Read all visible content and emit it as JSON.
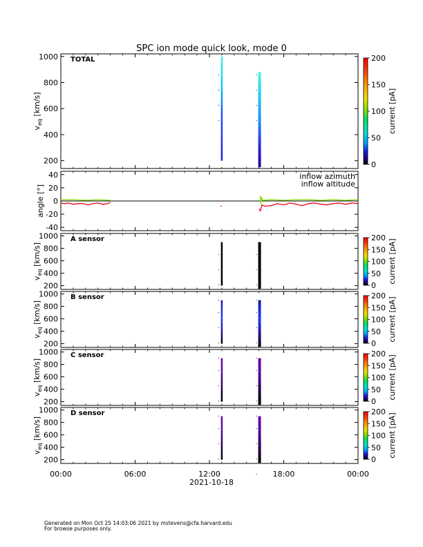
{
  "figure": {
    "title": "SPC ion mode quick look, mode 0",
    "footer_line1": "Generated on Mon Oct 25 14:03:06 2021 by mstevens@cfa.harvard.edu",
    "footer_line2": "For browse purposes only.",
    "date_label": "2021-10-18"
  },
  "colors": {
    "azimuth": "#e8001c",
    "altitude": "#7fe000",
    "axis": "#000000"
  },
  "chart_data": [
    {
      "type": "heatmap",
      "panel": "TOTAL",
      "label": "TOTAL",
      "ylabel_main": "v",
      "ylabel_sub": "eq",
      "ylabel_unit": "[km/s]",
      "ylim": [
        140,
        1020
      ],
      "yticks": [
        200,
        400,
        600,
        800,
        1000
      ],
      "colorbar": {
        "label": "current [pA]",
        "range": [
          0,
          200
        ],
        "ticks": [
          0,
          50,
          100,
          150,
          200
        ]
      },
      "events": [
        {
          "t": 13.0,
          "vmin": 200,
          "vmax": 1000,
          "style": "total1"
        },
        {
          "t": 16.05,
          "vmin": 150,
          "vmax": 880,
          "style": "total2"
        }
      ]
    },
    {
      "type": "line",
      "panel": "angle",
      "ylabel": "angle [°]",
      "ylim": [
        -45,
        45
      ],
      "yticks": [
        -40,
        -20,
        0,
        20,
        40
      ],
      "legend": [
        "inflow azimuth",
        "inflow altitude"
      ],
      "series": [
        {
          "name": "inflow azimuth",
          "x": [
            0,
            0.3,
            0.6,
            1,
            1.4,
            1.8,
            2.2,
            2.6,
            3,
            3.4,
            3.8,
            4.0,
            12.9,
            12.9,
            13.0,
            13.0,
            16.0,
            16.1,
            16.25,
            16.5,
            17,
            17.5,
            18,
            18.5,
            19,
            19.5,
            20,
            20.5,
            21,
            21.5,
            22,
            22.5,
            23,
            23.5,
            24
          ],
          "y": [
            -3,
            -4,
            -3,
            -5,
            -4,
            -4,
            -6,
            -4,
            -3,
            -5,
            -4,
            -2,
            null,
            -8,
            -8,
            null,
            -12,
            -15,
            -6,
            -8,
            -7,
            -4,
            -6,
            -3,
            -5,
            -7,
            -4,
            -3,
            -5,
            -6,
            -4,
            -3,
            -5,
            -3,
            -4
          ]
        },
        {
          "name": "inflow altitude",
          "x": [
            0,
            1,
            2,
            3,
            4,
            12.9,
            13.0,
            16.0,
            16.1,
            16.15,
            16.2,
            16.3,
            17,
            18,
            19,
            20,
            21,
            22,
            23,
            24
          ],
          "y": [
            2,
            2,
            1,
            2,
            1,
            null,
            2,
            null,
            8,
            -5,
            6,
            1,
            2,
            1,
            2,
            2,
            1,
            2,
            1,
            2
          ]
        }
      ]
    },
    {
      "type": "heatmap",
      "panel": "A",
      "label": "A sensor",
      "ylabel_main": "v",
      "ylabel_sub": "eq",
      "ylabel_unit": "[km/s]",
      "ylim": [
        140,
        1040
      ],
      "yticks": [
        200,
        400,
        600,
        800,
        1000
      ],
      "colorbar": {
        "label": "current [pA]",
        "range": [
          0,
          200
        ],
        "ticks": [
          0,
          50,
          100,
          150,
          200
        ]
      },
      "events": [
        {
          "t": 13.0,
          "vmin": 200,
          "vmax": 900,
          "style": "dark"
        },
        {
          "t": 16.05,
          "vmin": 150,
          "vmax": 900,
          "style": "dark"
        }
      ]
    },
    {
      "type": "heatmap",
      "panel": "B",
      "label": "B sensor",
      "ylabel_main": "v",
      "ylabel_sub": "eq",
      "ylabel_unit": "[km/s]",
      "ylim": [
        140,
        1040
      ],
      "yticks": [
        200,
        400,
        600,
        800,
        1000
      ],
      "colorbar": {
        "label": "current [pA]",
        "range": [
          0,
          200
        ],
        "ticks": [
          0,
          50,
          100,
          150,
          200
        ]
      },
      "events": [
        {
          "t": 13.0,
          "vmin": 200,
          "vmax": 900,
          "style": "blue"
        },
        {
          "t": 16.05,
          "vmin": 150,
          "vmax": 900,
          "style": "blue"
        }
      ]
    },
    {
      "type": "heatmap",
      "panel": "C",
      "label": "C sensor",
      "ylabel_main": "v",
      "ylabel_sub": "eq",
      "ylabel_unit": "[km/s]",
      "ylim": [
        140,
        1040
      ],
      "yticks": [
        200,
        400,
        600,
        800,
        1000
      ],
      "colorbar": {
        "label": "current [pA]",
        "range": [
          0,
          200
        ],
        "ticks": [
          0,
          50,
          100,
          150,
          200
        ]
      },
      "events": [
        {
          "t": 13.0,
          "vmin": 200,
          "vmax": 900,
          "style": "purple"
        },
        {
          "t": 16.05,
          "vmin": 150,
          "vmax": 900,
          "style": "purple"
        }
      ]
    },
    {
      "type": "heatmap",
      "panel": "D",
      "label": "D sensor",
      "ylabel_main": "v",
      "ylabel_sub": "eq",
      "ylabel_unit": "[km/s]",
      "ylim": [
        140,
        1040
      ],
      "yticks": [
        200,
        400,
        600,
        800,
        1000
      ],
      "colorbar": {
        "label": "current [pA]",
        "range": [
          0,
          200
        ],
        "ticks": [
          0,
          50,
          100,
          150,
          200
        ]
      },
      "events": [
        {
          "t": 13.0,
          "vmin": 200,
          "vmax": 900,
          "style": "purple"
        },
        {
          "t": 16.05,
          "vmin": 150,
          "vmax": 900,
          "style": "purple"
        }
      ]
    }
  ],
  "xaxis": {
    "xlim": [
      0,
      24
    ],
    "ticks": [
      0,
      6,
      12,
      18,
      24
    ],
    "tick_labels": [
      "00:00",
      "06:00",
      "12:00",
      "18:00",
      "00:00"
    ]
  }
}
